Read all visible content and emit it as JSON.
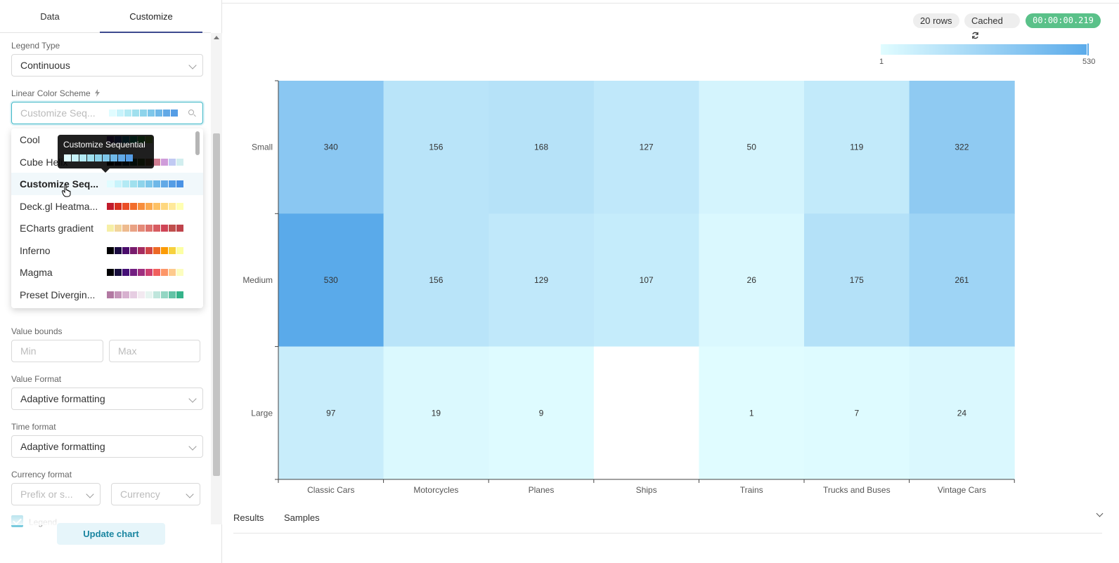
{
  "tabs": {
    "data": "Data",
    "customize": "Customize"
  },
  "legend_type": {
    "label": "Legend Type",
    "value": "Continuous"
  },
  "color_scheme": {
    "label": "Linear Color Scheme",
    "placeholder": "Customize Seq...",
    "colors": [
      "#e0fcff",
      "#c7f3fb",
      "#b3eaf4",
      "#a0e0ee",
      "#8ed4eb",
      "#7ec7ea",
      "#6fb8e8",
      "#62a9e6",
      "#559de5"
    ],
    "options": [
      {
        "label": "Cool",
        "colors": [
          "#6e40aa",
          "#4c6edb",
          "#23abd8",
          "#1ddfa3",
          "#52f667",
          "#aff05b"
        ]
      },
      {
        "label": "Cube Helix",
        "colors": [
          "#000000",
          "#1a1530",
          "#163d4e",
          "#1f6642",
          "#54792f",
          "#a07949",
          "#d07e93",
          "#cf9cda",
          "#c1caf3",
          "#d2eeef"
        ]
      },
      {
        "label": "Customize Seq...",
        "colors": [
          "#e0fcff",
          "#c7f3fb",
          "#b3eaf4",
          "#a0e0ee",
          "#8ed4eb",
          "#7ec7ea",
          "#6fb8e8",
          "#62a9e6",
          "#559de5",
          "#4a92e4"
        ]
      },
      {
        "label": "Deck.gl Heatma...",
        "colors": [
          "#c11b2b",
          "#d7301f",
          "#ea4e26",
          "#f26d2b",
          "#f78e3c",
          "#fba94f",
          "#fdc165",
          "#fed77e",
          "#ffe99a",
          "#ffffb2"
        ]
      },
      {
        "label": "ECharts gradient",
        "colors": [
          "#f6efa6",
          "#f2d49b",
          "#eebb8f",
          "#e9a284",
          "#e48a78",
          "#de736d",
          "#d75c61",
          "#cf4556",
          "#c0504d",
          "#bf444c"
        ]
      },
      {
        "label": "Inferno",
        "colors": [
          "#000004",
          "#1b0c41",
          "#4a0c6b",
          "#781c6d",
          "#a52c60",
          "#cf4446",
          "#ed6925",
          "#fb9b06",
          "#f7d13d",
          "#fcffa4"
        ]
      },
      {
        "label": "Magma",
        "colors": [
          "#000004",
          "#180f3d",
          "#440f76",
          "#721f81",
          "#9e2f7f",
          "#cd4071",
          "#f1605d",
          "#fd9668",
          "#feca8d",
          "#fcfdbf"
        ]
      },
      {
        "label": "Preset Divergin...",
        "colors": [
          "#b279a2",
          "#c595b9",
          "#d7b1cf",
          "#e6cde2",
          "#f2e9f0",
          "#e6f4f0",
          "#bfe6dc",
          "#93d6c3",
          "#63c3a6",
          "#35b38a"
        ]
      }
    ],
    "active_index": 2
  },
  "tooltip": {
    "text": "Customize Sequential",
    "colors": [
      "#e0fcff",
      "#c7f3fb",
      "#b3eaf4",
      "#a0e0ee",
      "#8ed4eb",
      "#7ec7ea",
      "#6fb8e8",
      "#62a9e6",
      "#559de5"
    ]
  },
  "value_bounds": {
    "label": "Value bounds",
    "min_placeholder": "Min",
    "max_placeholder": "Max"
  },
  "value_format": {
    "label": "Value Format",
    "value": "Adaptive formatting"
  },
  "time_format": {
    "label": "Time format",
    "value": "Adaptive formatting"
  },
  "currency_format": {
    "label": "Currency format",
    "prefix_placeholder": "Prefix or s...",
    "currency_placeholder": "Currency"
  },
  "legend_checkbox": {
    "label": "Legend",
    "checked": true
  },
  "update_button": "Update chart",
  "status": {
    "rows": "20 rows",
    "cached": "Cached",
    "time": "00:00:00.219",
    "time_color": "#5ac189"
  },
  "legend": {
    "min_label": "1",
    "max_label": "530",
    "min_color": "#e0fcff",
    "max_color": "#5aaaea"
  },
  "chart_data": {
    "type": "heatmap",
    "title": "",
    "xlabel": "",
    "ylabel": "",
    "x": [
      "Classic Cars",
      "Motorcycles",
      "Planes",
      "Ships",
      "Trains",
      "Trucks and Buses",
      "Vintage Cars"
    ],
    "y": [
      "Small",
      "Medium",
      "Large"
    ],
    "values": [
      [
        340,
        156,
        168,
        127,
        50,
        119,
        322
      ],
      [
        530,
        156,
        129,
        107,
        26,
        175,
        261
      ],
      [
        97,
        19,
        9,
        null,
        1,
        7,
        24
      ]
    ],
    "color_range": [
      1,
      530
    ],
    "legend": "top-right"
  },
  "bottom_tabs": {
    "results": "Results",
    "samples": "Samples"
  }
}
